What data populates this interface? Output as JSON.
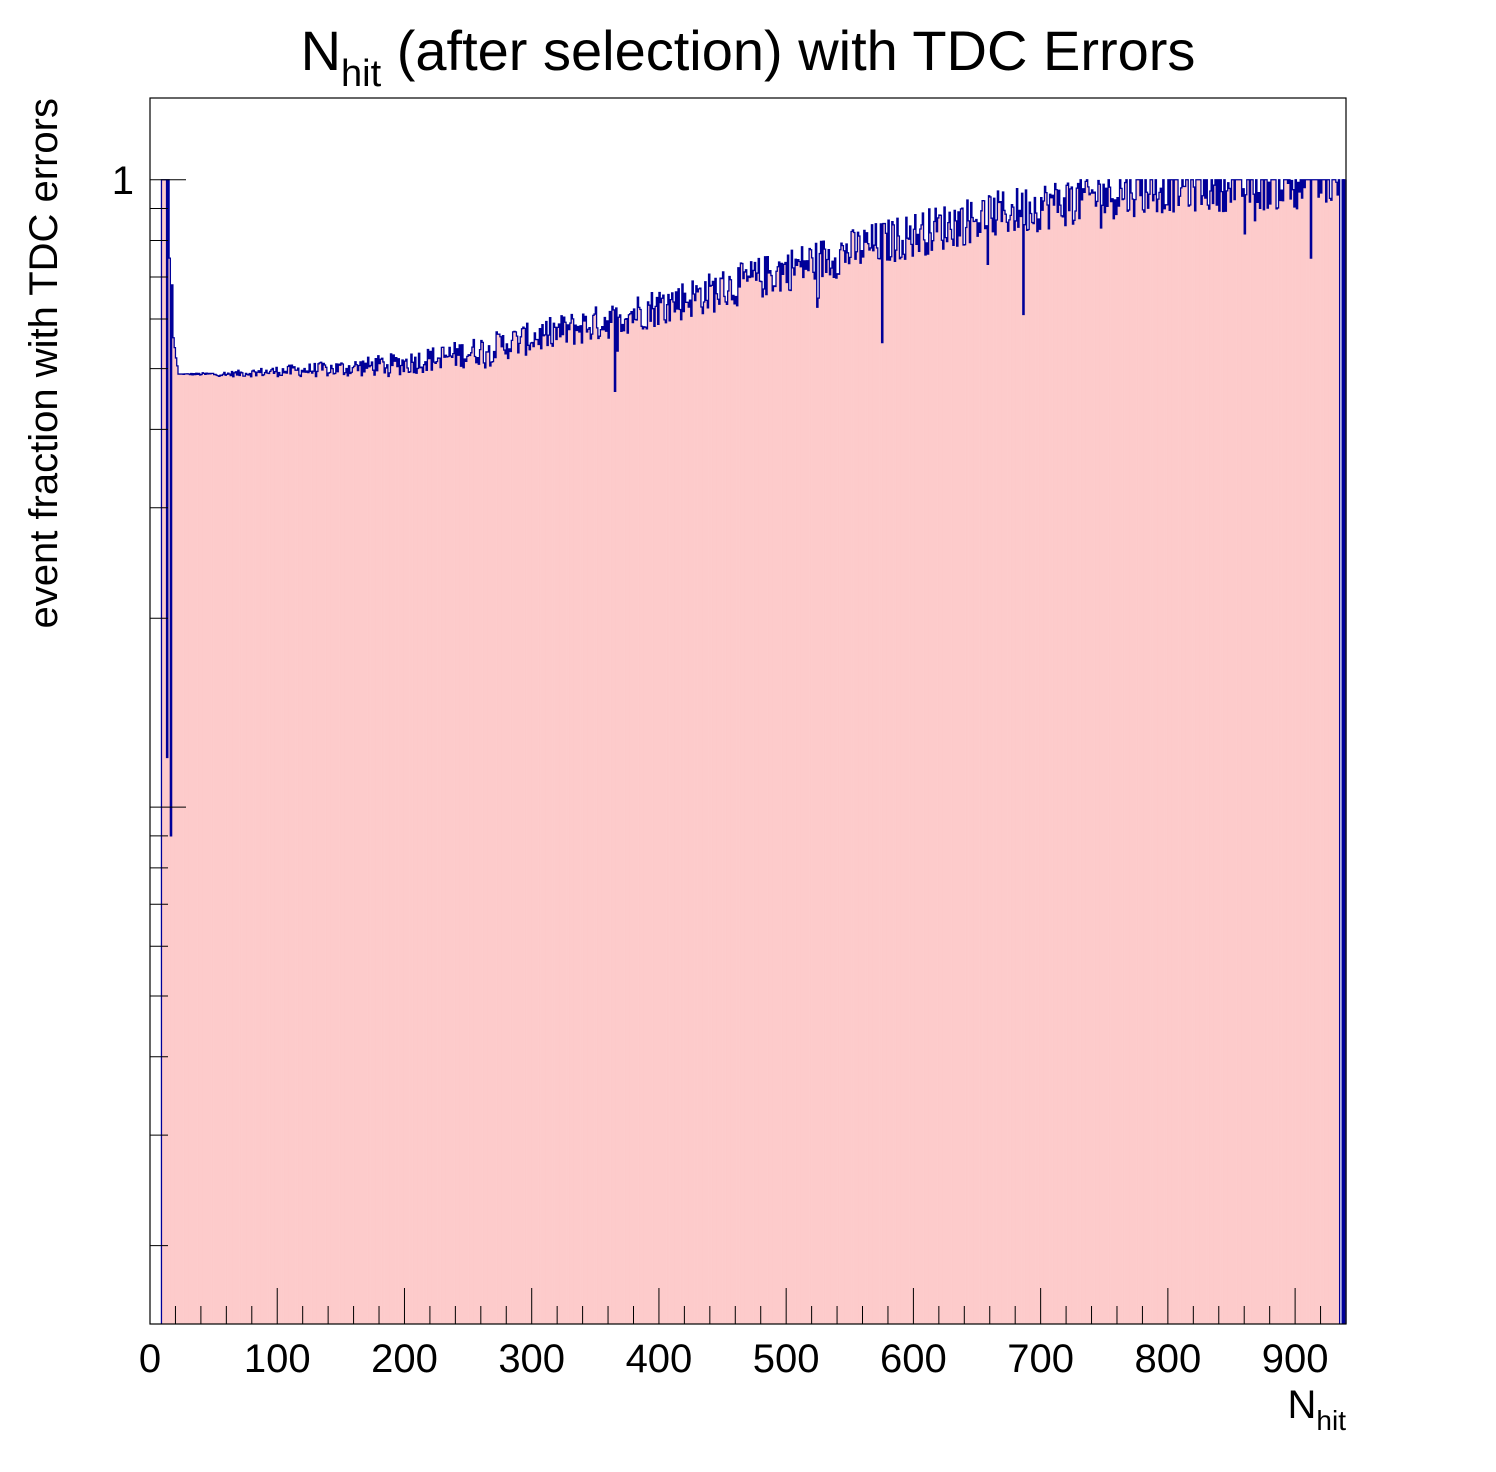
{
  "chart_data": {
    "type": "bar",
    "title": {
      "main": "N",
      "sub": "hit",
      "rest": " (after selection) with TDC Errors"
    },
    "xlabel": {
      "main": "N",
      "sub": "hit"
    },
    "ylabel": "event fraction with TDC errors",
    "x_range": [
      0,
      940
    ],
    "y_range": [
      0.015,
      1.35
    ],
    "y_scale": "log",
    "x_ticks": [
      "0",
      "100",
      "200",
      "300",
      "400",
      "500",
      "600",
      "700",
      "800",
      "900"
    ],
    "y_ticks": [
      "1"
    ],
    "bin_width": 1,
    "bins_start": 9,
    "fill_color": "#fdcbcb",
    "line_color": "#000099",
    "grid": false,
    "legend": "none",
    "anchors": [
      [
        9,
        1.0
      ],
      [
        12,
        1.0
      ],
      [
        13,
        0.12
      ],
      [
        14,
        1.0
      ],
      [
        15,
        0.75
      ],
      [
        16,
        0.09
      ],
      [
        17,
        0.68
      ],
      [
        18,
        0.56
      ],
      [
        20,
        0.52
      ],
      [
        22,
        0.49
      ],
      [
        30,
        0.49
      ],
      [
        60,
        0.49
      ],
      [
        100,
        0.495
      ],
      [
        150,
        0.5
      ],
      [
        200,
        0.51
      ],
      [
        250,
        0.53
      ],
      [
        300,
        0.56
      ],
      [
        350,
        0.59
      ],
      [
        400,
        0.63
      ],
      [
        450,
        0.67
      ],
      [
        500,
        0.72
      ],
      [
        550,
        0.77
      ],
      [
        600,
        0.82
      ],
      [
        650,
        0.87
      ],
      [
        700,
        0.91
      ],
      [
        750,
        0.95
      ],
      [
        800,
        0.98
      ],
      [
        850,
        0.99
      ],
      [
        900,
        0.995
      ],
      [
        934,
        1.0
      ]
    ],
    "noise_growth_per_bin": 0.00012,
    "notable_dips": [
      [
        365,
        0.46
      ],
      [
        575,
        0.55
      ],
      [
        686,
        0.61
      ],
      [
        860,
        0.82
      ],
      [
        912,
        0.75
      ]
    ],
    "edge_bins": [
      [
        937,
        1.0
      ],
      [
        938,
        1.0
      ],
      [
        940,
        1.0
      ]
    ]
  }
}
